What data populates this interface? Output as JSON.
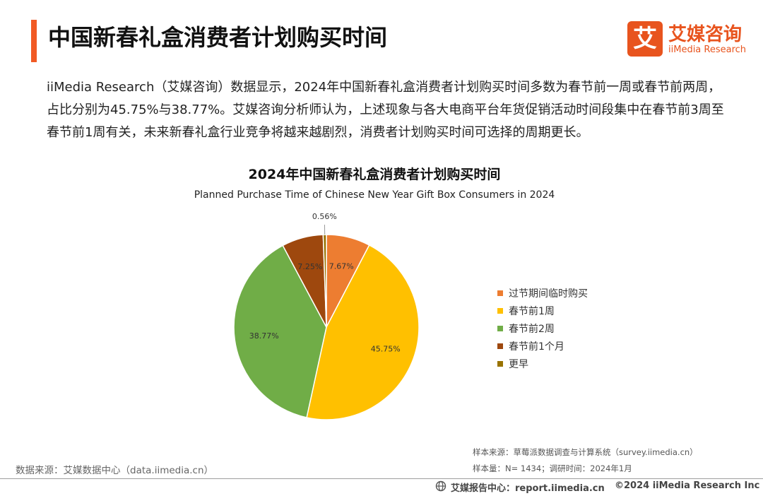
{
  "header": {
    "title": "中国新春礼盒消费者计划购买时间",
    "accent_color": "#f15a24"
  },
  "logo": {
    "mark": "艾",
    "name_cn": "艾媒咨询",
    "name_en": "iiMedia Research",
    "color": "#e8541e"
  },
  "intro": {
    "text": "iiMedia Research（艾媒咨询）数据显示，2024年中国新春礼盒消费者计划购买时间多数为春节前一周或春节前两周，占比分别为45.75%与38.77%。艾媒咨询分析师认为，上述现象与各大电商平台年货促销活动时间段集中在春节前3周至春节前1周有关，未来新春礼盒行业竞争将越来越剧烈，消费者计划购买时间可选择的周期更长。"
  },
  "chart_data": {
    "type": "pie",
    "title": "2024年中国新春礼盒消费者计划购买时间",
    "subtitle": "Planned Purchase Time of Chinese New Year Gift Box Consumers in 2024",
    "legend_position": "right",
    "slices": [
      {
        "label": "过节期间临时购买",
        "value": 7.67,
        "display": "7.67%",
        "color": "#ed7d31"
      },
      {
        "label": "春节前1周",
        "value": 45.75,
        "display": "45.75%",
        "color": "#ffc000"
      },
      {
        "label": "春节前2周",
        "value": 38.77,
        "display": "38.77%",
        "color": "#70ad47"
      },
      {
        "label": "春节前1个月",
        "value": 7.25,
        "display": "7.25%",
        "color": "#9e480e"
      },
      {
        "label": "更早",
        "value": 0.56,
        "display": "0.56%",
        "color": "#997300"
      }
    ]
  },
  "sources": {
    "data_source": "数据来源：艾媒数据中心（data.iimedia.cn）",
    "sample_source": "样本来源：草莓派数据调查与计算系统（survey.iimedia.cn）",
    "sample_info": "样本量：N= 1434；调研时间：2024年1月"
  },
  "footer": {
    "report_label": "艾媒报告中心：report.iimedia.cn",
    "copyright": "©2024  iiMedia Research  Inc"
  }
}
